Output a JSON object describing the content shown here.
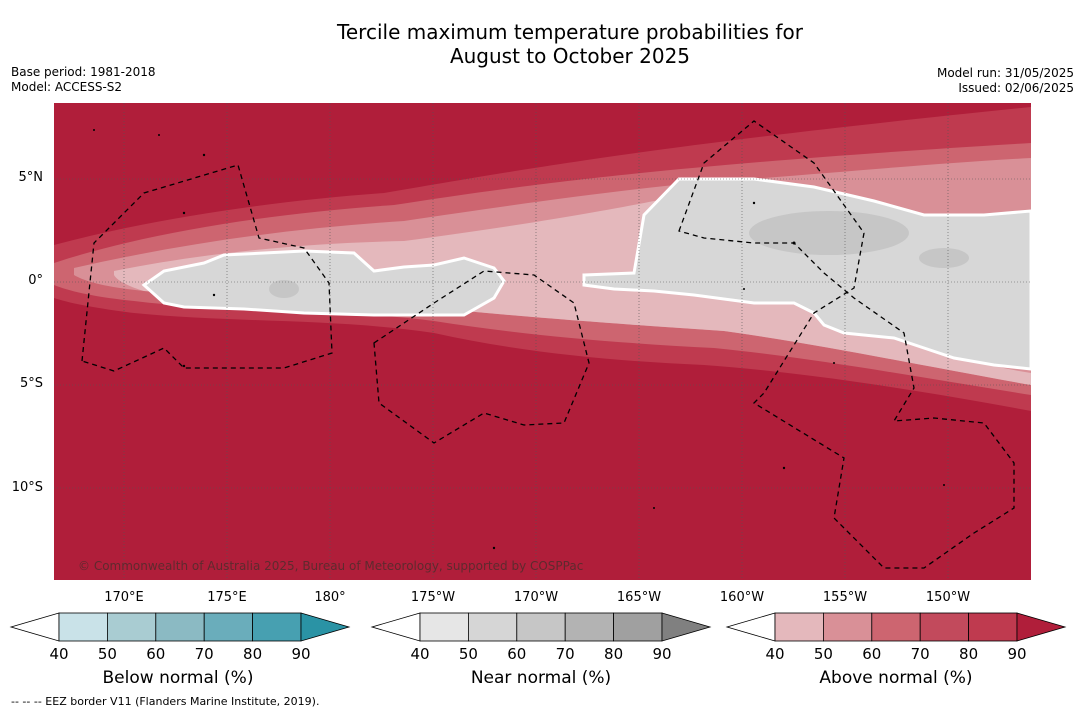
{
  "title_line1": "Tercile maximum temperature probabilities for",
  "title_line2": "August to October 2025",
  "base_period": "Base period: 1981-2018",
  "model": "Model: ACCESS-S2",
  "model_run": "Model run: 31/05/2025",
  "issued": "Issued: 02/06/2025",
  "copyright": "© Commonwealth of Australia 2025, Bureau of Meteorology, supported by COSPPac",
  "footnote": "--  --  -- EEZ border V11 (Flanders Marine Institute, 2019).",
  "map": {
    "lat_labels": [
      "5°N",
      "0°",
      "5°S",
      "10°S"
    ],
    "lon_labels": [
      "170°E",
      "175°E",
      "180°",
      "175°W",
      "170°W",
      "165°W",
      "160°W",
      "155°W",
      "150°W"
    ],
    "colors": {
      "above_90": "#b01e3a",
      "above_80": "#bf3a4f",
      "above_70": "#cd6570",
      "above_60": "#d99097",
      "above_50": "#e4b8bc",
      "near_60": "#d7d7d7",
      "near_70": "#c6c6c6"
    }
  },
  "colorbars": [
    {
      "title": "Below normal (%)",
      "ticks": [
        "40",
        "50",
        "60",
        "70",
        "80",
        "90"
      ],
      "colors": [
        "#ffffff",
        "#c9e2e8",
        "#a9ccd2",
        "#8bbac3",
        "#6aadbb",
        "#47a0b1",
        "#2a93a5"
      ]
    },
    {
      "title": "Near normal (%)",
      "ticks": [
        "40",
        "50",
        "60",
        "70",
        "80",
        "90"
      ],
      "colors": [
        "#ffffff",
        "#e6e6e6",
        "#d6d6d6",
        "#c6c6c6",
        "#b3b3b3",
        "#a0a0a0",
        "#808080"
      ]
    },
    {
      "title": "Above normal (%)",
      "ticks": [
        "40",
        "50",
        "60",
        "70",
        "80",
        "90"
      ],
      "colors": [
        "#ffffff",
        "#e4b8bc",
        "#d99097",
        "#cd6570",
        "#c24a5c",
        "#bf3a4f",
        "#b01e3a"
      ]
    }
  ]
}
